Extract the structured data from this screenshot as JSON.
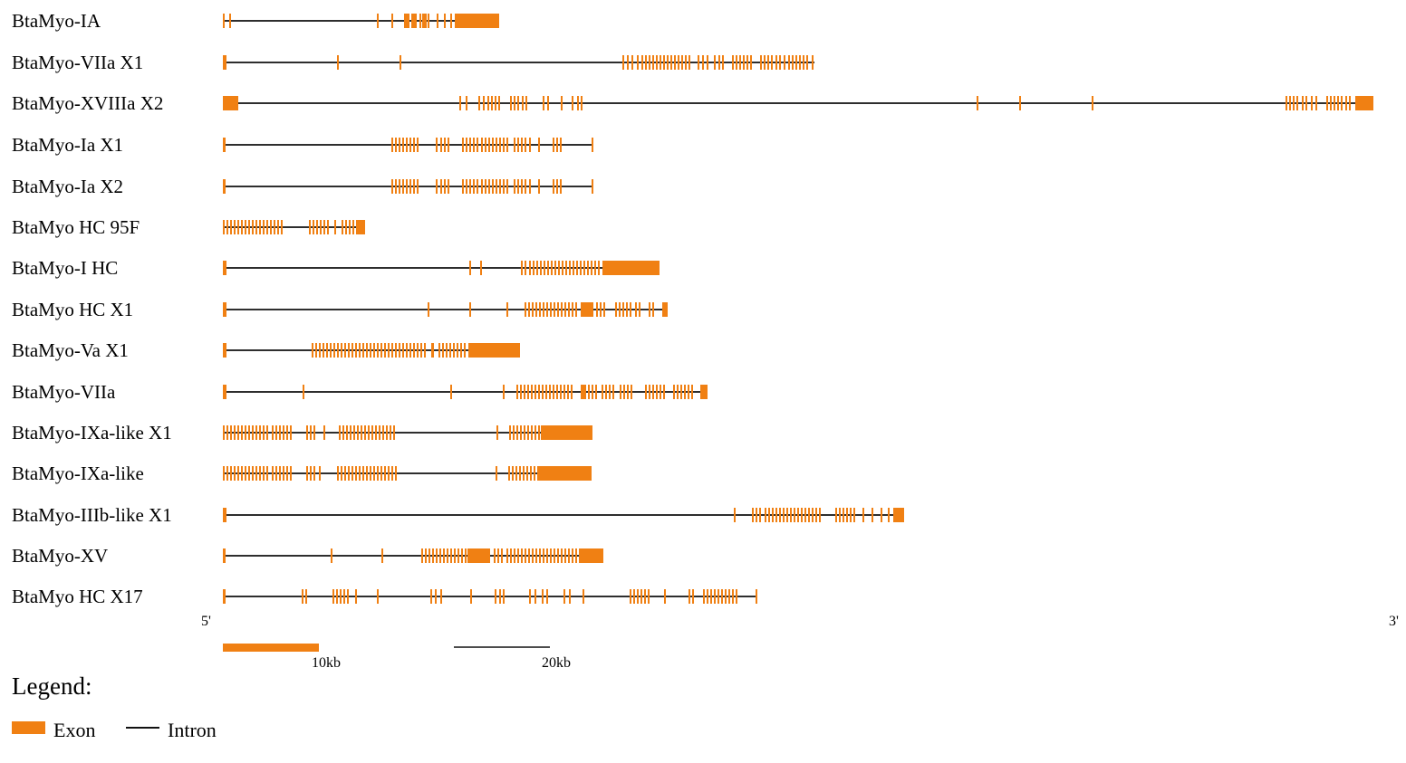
{
  "colors": {
    "exon": "#f08013",
    "intron": "#111111",
    "background": "#ffffff",
    "text": "#1a1a1a"
  },
  "axis": {
    "five_prime": "5'",
    "three_prime": "3'"
  },
  "scale_bars": [
    {
      "label": "10kb",
      "style": "exon"
    },
    {
      "label": "20kb",
      "style": "intron"
    }
  ],
  "legend": {
    "title": "Legend:",
    "items": [
      {
        "label": "Exon",
        "style": "exon"
      },
      {
        "label": "Intron",
        "style": "intron"
      }
    ]
  },
  "genes": [
    {
      "name": "BtaMyo-IA"
    },
    {
      "name": "BtaMyo-VIIa X1"
    },
    {
      "name": "BtaMyo-XVIIIa X2"
    },
    {
      "name": "BtaMyo-Ia X1"
    },
    {
      "name": "BtaMyo-Ia X2"
    },
    {
      "name": "BtaMyo HC 95F"
    },
    {
      "name": "BtaMyo-I HC"
    },
    {
      "name": "BtaMyo HC X1"
    },
    {
      "name": "BtaMyo-Va X1"
    },
    {
      "name": "BtaMyo-VIIa"
    },
    {
      "name": "BtaMyo-IXa-like X1"
    },
    {
      "name": "BtaMyo-IXa-like"
    },
    {
      "name": "BtaMyo-IIIb-like X1"
    },
    {
      "name": "BtaMyo-XV"
    },
    {
      "name": "BtaMyo HC X17"
    }
  ]
}
